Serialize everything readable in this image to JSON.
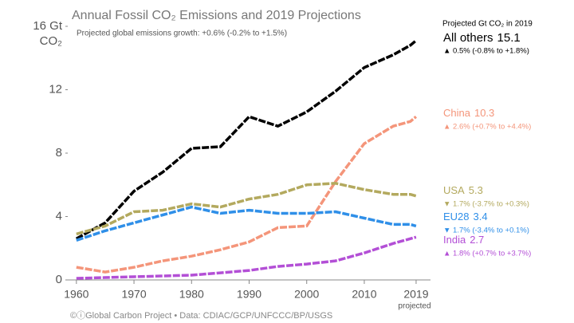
{
  "chart_data": {
    "type": "line",
    "title": "Annual Fossil CO₂ Emissions and 2019 Projections",
    "subtitle": "Projected global emissions growth: +0.6% (-0.2% to +1.5%)",
    "y_unit": "CO₂",
    "legend_title": "Projected Gt CO₂ in 2019",
    "x_note": "projected",
    "footer": "©ⓘGlobal Carbon Project  •  Data: CDIAC/GCP/UNFCCC/BP/USGS",
    "x": [
      1960,
      1965,
      1970,
      1975,
      1980,
      1985,
      1990,
      1995,
      2000,
      2005,
      2010,
      2015,
      2018,
      2019
    ],
    "xlim": [
      1958.5,
      2021.5
    ],
    "xticks": [
      1960,
      1970,
      1980,
      1990,
      2000,
      2010,
      2019
    ],
    "ylim": [
      0,
      16
    ],
    "yticks": [
      0,
      4,
      8,
      12,
      {
        "value": 16,
        "label": "16 Gt"
      }
    ],
    "series": [
      {
        "name": "All others",
        "color": "#000000",
        "growth": "▲ 0.5% (-0.8% to +1.8%)",
        "values": [
          2.6,
          3.6,
          5.6,
          6.8,
          8.3,
          8.4,
          10.3,
          9.7,
          10.6,
          11.9,
          13.4,
          14.2,
          14.8,
          15.1
        ]
      },
      {
        "name": "China",
        "color": "#f4957a",
        "growth": "▲ 2.6% (+0.7% to +4.4%)",
        "values": [
          0.8,
          0.5,
          0.8,
          1.2,
          1.5,
          1.9,
          2.4,
          3.3,
          3.4,
          6.2,
          8.6,
          9.7,
          10.0,
          10.3
        ]
      },
      {
        "name": "USA",
        "color": "#b3a95e",
        "growth": "▼ 1.7% (-3.7% to +0.3%)",
        "values": [
          2.9,
          3.4,
          4.3,
          4.4,
          4.8,
          4.6,
          5.1,
          5.4,
          6.0,
          6.1,
          5.7,
          5.4,
          5.4,
          5.3
        ]
      },
      {
        "name": "EU28",
        "color": "#2f8fe8",
        "growth": "▼ 1.7% (-3.4% to +0.1%)",
        "values": [
          2.5,
          3.1,
          3.6,
          4.1,
          4.6,
          4.2,
          4.4,
          4.2,
          4.2,
          4.3,
          3.9,
          3.5,
          3.5,
          3.4
        ]
      },
      {
        "name": "India",
        "color": "#b34fd6",
        "growth": "▲ 1.8% (+0.7% to +3.7%)",
        "values": [
          0.1,
          0.15,
          0.2,
          0.25,
          0.3,
          0.45,
          0.6,
          0.85,
          1.0,
          1.2,
          1.7,
          2.3,
          2.6,
          2.7
        ]
      }
    ]
  }
}
